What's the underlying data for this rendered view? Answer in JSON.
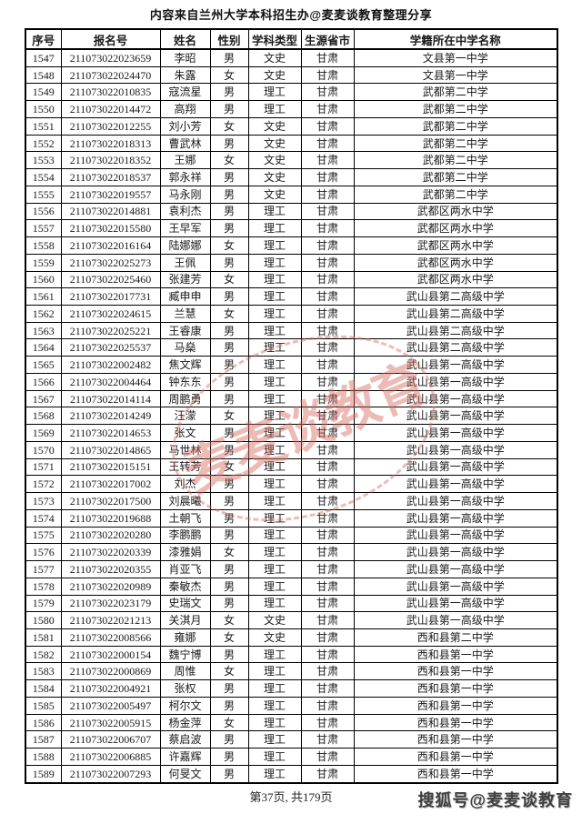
{
  "page": {
    "title": "内容来自兰州大学本科招生办@麦麦谈教育整理分享",
    "footer": "第37页, 共179页",
    "watermark_center": "麦麦谈教育",
    "watermark_bottom": "搜狐号@麦麦谈教育",
    "stamp_color": "#d9695f"
  },
  "table": {
    "headers": [
      "序号",
      "报名号",
      "姓名",
      "性别",
      "学科类型",
      "生源省市",
      "学籍所在中学名称"
    ],
    "rows": [
      [
        "1547",
        "211073022023659",
        "李昭",
        "男",
        "文史",
        "甘肃",
        "文县第一中学"
      ],
      [
        "1548",
        "211073022024470",
        "朱露",
        "女",
        "文史",
        "甘肃",
        "文县第一中学"
      ],
      [
        "1549",
        "211073022010835",
        "寇流星",
        "男",
        "理工",
        "甘肃",
        "武都第二中学"
      ],
      [
        "1550",
        "211073022014472",
        "高翔",
        "男",
        "理工",
        "甘肃",
        "武都第二中学"
      ],
      [
        "1551",
        "211073022012255",
        "刘小芳",
        "女",
        "文史",
        "甘肃",
        "武都第二中学"
      ],
      [
        "1552",
        "211073022018313",
        "曹武林",
        "男",
        "文史",
        "甘肃",
        "武都第二中学"
      ],
      [
        "1553",
        "211073022018352",
        "王娜",
        "女",
        "文史",
        "甘肃",
        "武都第二中学"
      ],
      [
        "1554",
        "211073022018537",
        "郭永祥",
        "男",
        "文史",
        "甘肃",
        "武都第二中学"
      ],
      [
        "1555",
        "211073022019557",
        "马永刚",
        "男",
        "文史",
        "甘肃",
        "武都第二中学"
      ],
      [
        "1556",
        "211073022014881",
        "袁利杰",
        "男",
        "理工",
        "甘肃",
        "武都区两水中学"
      ],
      [
        "1557",
        "211073022015580",
        "王早军",
        "男",
        "理工",
        "甘肃",
        "武都区两水中学"
      ],
      [
        "1558",
        "211073022016164",
        "陆娜娜",
        "女",
        "理工",
        "甘肃",
        "武都区两水中学"
      ],
      [
        "1559",
        "211073022025273",
        "王佩",
        "男",
        "理工",
        "甘肃",
        "武都区两水中学"
      ],
      [
        "1560",
        "211073022025460",
        "张建芳",
        "女",
        "理工",
        "甘肃",
        "武都区两水中学"
      ],
      [
        "1561",
        "211073022017731",
        "臧申申",
        "男",
        "理工",
        "甘肃",
        "武山县第二高级中学"
      ],
      [
        "1562",
        "211073022024615",
        "兰慧",
        "女",
        "理工",
        "甘肃",
        "武山县第二高级中学"
      ],
      [
        "1563",
        "211073022025221",
        "王睿康",
        "男",
        "理工",
        "甘肃",
        "武山县第二高级中学"
      ],
      [
        "1564",
        "211073022025537",
        "马燊",
        "男",
        "理工",
        "甘肃",
        "武山县第二高级中学"
      ],
      [
        "1565",
        "211073022002482",
        "焦文辉",
        "男",
        "理工",
        "甘肃",
        "武山县第一高级中学"
      ],
      [
        "1566",
        "211073022004464",
        "钟东东",
        "男",
        "理工",
        "甘肃",
        "武山县第一高级中学"
      ],
      [
        "1567",
        "211073022014114",
        "周鹏勇",
        "男",
        "理工",
        "甘肃",
        "武山县第一高级中学"
      ],
      [
        "1568",
        "211073022014249",
        "汪濛",
        "女",
        "理工",
        "甘肃",
        "武山县第一高级中学"
      ],
      [
        "1569",
        "211073022014653",
        "张文",
        "男",
        "理工",
        "甘肃",
        "武山县第一高级中学"
      ],
      [
        "1570",
        "211073022014865",
        "马世林",
        "男",
        "理工",
        "甘肃",
        "武山县第一高级中学"
      ],
      [
        "1571",
        "211073022015151",
        "王转芳",
        "女",
        "理工",
        "甘肃",
        "武山县第一高级中学"
      ],
      [
        "1572",
        "211073022017002",
        "刘杰",
        "男",
        "理工",
        "甘肃",
        "武山县第一高级中学"
      ],
      [
        "1573",
        "211073022017500",
        "刘晨曦",
        "男",
        "理工",
        "甘肃",
        "武山县第一高级中学"
      ],
      [
        "1574",
        "211073022019688",
        "土朝飞",
        "男",
        "理工",
        "甘肃",
        "武山县第一高级中学"
      ],
      [
        "1575",
        "211073022020280",
        "李鹏鹏",
        "男",
        "理工",
        "甘肃",
        "武山县第一高级中学"
      ],
      [
        "1576",
        "211073022020339",
        "漆雅娟",
        "女",
        "理工",
        "甘肃",
        "武山县第一高级中学"
      ],
      [
        "1577",
        "211073022020355",
        "肖亚飞",
        "男",
        "理工",
        "甘肃",
        "武山县第一高级中学"
      ],
      [
        "1578",
        "211073022020989",
        "秦敏杰",
        "男",
        "理工",
        "甘肃",
        "武山县第一高级中学"
      ],
      [
        "1579",
        "211073022023179",
        "史瑞文",
        "男",
        "理工",
        "甘肃",
        "武山县第一高级中学"
      ],
      [
        "1580",
        "211073022021213",
        "关淇月",
        "女",
        "文史",
        "甘肃",
        "武山县第一高级中学"
      ],
      [
        "1581",
        "211073022008566",
        "雍娜",
        "女",
        "文史",
        "甘肃",
        "西和县第二中学"
      ],
      [
        "1582",
        "211073022000154",
        "魏宁博",
        "男",
        "理工",
        "甘肃",
        "西和县第一中学"
      ],
      [
        "1583",
        "211073022000869",
        "周惟",
        "女",
        "理工",
        "甘肃",
        "西和县第一中学"
      ],
      [
        "1584",
        "211073022004921",
        "张权",
        "男",
        "理工",
        "甘肃",
        "西和县第一中学"
      ],
      [
        "1585",
        "211073022005497",
        "柯尔文",
        "男",
        "理工",
        "甘肃",
        "西和县第一中学"
      ],
      [
        "1586",
        "211073022005915",
        "杨金萍",
        "女",
        "理工",
        "甘肃",
        "西和县第一中学"
      ],
      [
        "1587",
        "211073022006707",
        "蔡启波",
        "男",
        "理工",
        "甘肃",
        "西和县第一中学"
      ],
      [
        "1588",
        "211073022006885",
        "许嘉辉",
        "男",
        "理工",
        "甘肃",
        "西和县第一中学"
      ],
      [
        "1589",
        "211073022007293",
        "何旻文",
        "男",
        "理工",
        "甘肃",
        "西和县第一中学"
      ]
    ]
  }
}
